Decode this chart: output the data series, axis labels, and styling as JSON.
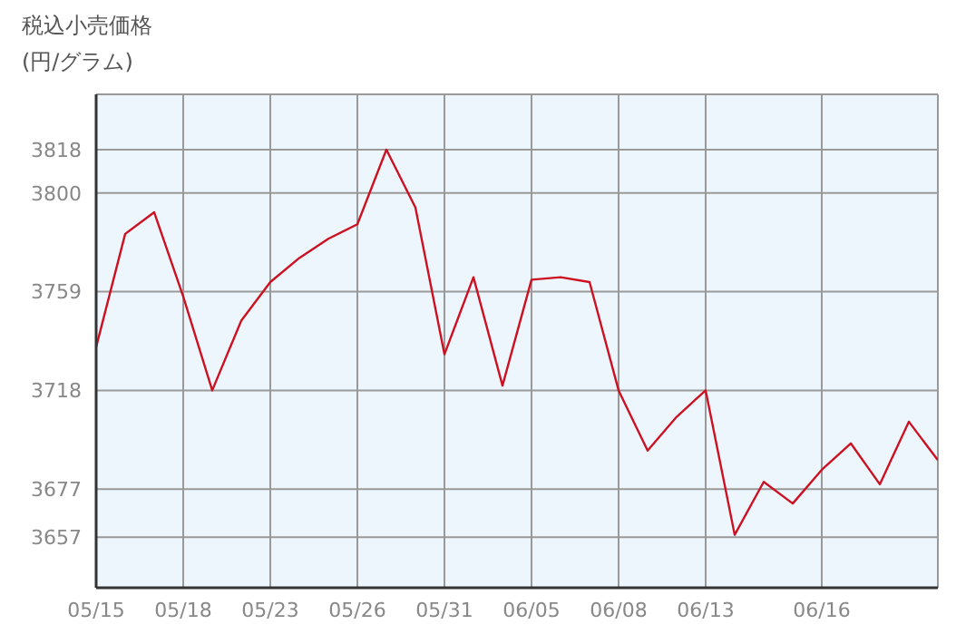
{
  "chart_data": {
    "type": "line",
    "title": "税込小売価格",
    "ylabel": "(円/グラム)",
    "categories": [
      "05/15",
      null,
      null,
      "05/18",
      null,
      null,
      "05/23",
      null,
      null,
      "05/26",
      null,
      null,
      "05/31",
      null,
      null,
      "06/05",
      null,
      null,
      "06/08",
      null,
      null,
      "06/13",
      null,
      null,
      null,
      "06/16",
      null,
      null,
      null,
      null
    ],
    "series": [
      {
        "color": "#cc1122",
        "values": [
          3736,
          3783,
          3792,
          3757,
          3718,
          3747,
          3763,
          3773,
          3781,
          3787,
          3818,
          3794,
          3733,
          3765,
          3720,
          3764,
          3765,
          3763,
          3718,
          3693,
          3707,
          3718,
          3658,
          3680,
          3671,
          3685,
          3696,
          3679,
          3705,
          3689
        ]
      }
    ],
    "ylim": [
      3636,
      3841
    ],
    "yticks": [
      3657,
      3677,
      3718,
      3759,
      3800,
      3818
    ],
    "grid": true,
    "marker": "none",
    "line_style": "solid"
  }
}
